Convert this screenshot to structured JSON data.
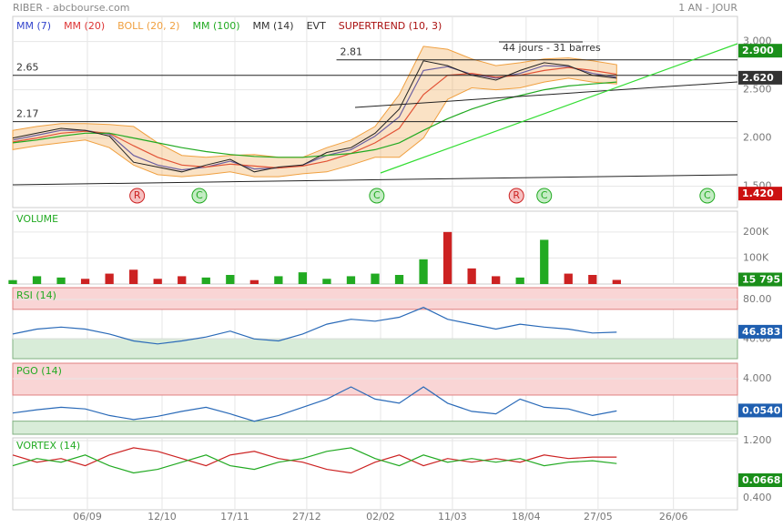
{
  "header": {
    "title": "RIBER - abcbourse.com",
    "period": "1 AN - JOUR"
  },
  "chart_data": [
    {
      "type": "line",
      "x": [
        0,
        2,
        4,
        6,
        8,
        10,
        12,
        14,
        16,
        18,
        20,
        22,
        24,
        26,
        28,
        30,
        32,
        34,
        36,
        38,
        40,
        42,
        44,
        46,
        48,
        50
      ],
      "xlim": [
        0,
        60
      ],
      "xticks": [
        {
          "value": 6.18,
          "label": "06/09"
        },
        {
          "value": 12.36,
          "label": "12/10"
        },
        {
          "value": 18.39,
          "label": "17/11"
        },
        {
          "value": 24.34,
          "label": "27/12"
        },
        {
          "value": 30.45,
          "label": "02/02"
        },
        {
          "value": 36.4,
          "label": "11/03"
        },
        {
          "value": 42.5,
          "label": "18/04"
        },
        {
          "value": 48.46,
          "label": "27/05"
        },
        {
          "value": 54.7,
          "label": "26/06"
        }
      ],
      "ylim": [
        1.28,
        3.26
      ],
      "yticks": [
        {
          "value": 1.5,
          "label": "1.500"
        },
        {
          "value": 2,
          "label": "2.000"
        },
        {
          "value": 2.5,
          "label": "2.500"
        },
        {
          "value": 3,
          "label": "3.000"
        }
      ],
      "close": {
        "color": "#222",
        "values": [
          2.0,
          2.05,
          2.1,
          2.08,
          2.02,
          1.75,
          1.7,
          1.65,
          1.72,
          1.78,
          1.65,
          1.7,
          1.72,
          1.85,
          1.9,
          2.05,
          2.3,
          2.8,
          2.75,
          2.65,
          2.6,
          2.7,
          2.78,
          2.75,
          2.65,
          2.62
        ]
      },
      "series": [
        {
          "name": "MM (7)",
          "color": "#3344cc",
          "values": [
            1.98,
            2.03,
            2.08,
            2.08,
            2.04,
            1.82,
            1.72,
            1.67,
            1.7,
            1.76,
            1.68,
            1.69,
            1.72,
            1.82,
            1.88,
            2.02,
            2.22,
            2.7,
            2.74,
            2.66,
            2.62,
            2.67,
            2.75,
            2.74,
            2.67,
            2.63
          ]
        },
        {
          "name": "MM (20)",
          "color": "#dd3333",
          "values": [
            1.96,
            2.0,
            2.05,
            2.07,
            2.05,
            1.92,
            1.8,
            1.72,
            1.7,
            1.73,
            1.71,
            1.69,
            1.71,
            1.76,
            1.84,
            1.95,
            2.1,
            2.45,
            2.65,
            2.67,
            2.63,
            2.65,
            2.7,
            2.73,
            2.7,
            2.66
          ]
        },
        {
          "name": "BOLL (20, 2)",
          "color": "#f0a040",
          "band": true,
          "values": [
            2.08,
            2.12,
            2.15,
            2.15,
            2.14,
            2.12,
            1.95,
            1.82,
            1.8,
            1.82,
            1.83,
            1.8,
            1.8,
            1.9,
            1.98,
            2.12,
            2.45,
            2.95,
            2.92,
            2.82,
            2.75,
            2.78,
            2.82,
            2.83,
            2.8,
            2.76
          ],
          "lower": [
            1.88,
            1.92,
            1.95,
            1.98,
            1.9,
            1.72,
            1.62,
            1.6,
            1.62,
            1.65,
            1.6,
            1.6,
            1.63,
            1.65,
            1.72,
            1.8,
            1.8,
            2.0,
            2.4,
            2.52,
            2.5,
            2.52,
            2.58,
            2.62,
            2.58,
            2.56
          ]
        },
        {
          "name": "MM (100)",
          "color": "#22aa22",
          "values": [
            1.95,
            1.98,
            2.02,
            2.05,
            2.05,
            2.0,
            1.95,
            1.9,
            1.86,
            1.83,
            1.81,
            1.8,
            1.8,
            1.82,
            1.84,
            1.88,
            1.95,
            2.08,
            2.2,
            2.3,
            2.38,
            2.44,
            2.5,
            2.54,
            2.56,
            2.58
          ]
        }
      ],
      "legend_extra": [
        {
          "name": "MM (14)",
          "color": "#333"
        },
        {
          "name": "EVT",
          "color": "#333"
        },
        {
          "name": "SUPERTREND (10, 3)",
          "color": "#aa1111"
        }
      ],
      "levels": [
        {
          "value": 2.81,
          "from": 26.8
        },
        {
          "value": 2.65,
          "from": 0
        },
        {
          "value": 2.17,
          "from": 0
        }
      ],
      "price_labels": [
        {
          "value": 2.9,
          "label": "2.900",
          "color": "#1a8f1a"
        },
        {
          "value": 2.62,
          "label": "2.620",
          "color": "#333"
        },
        {
          "value": 1.42,
          "label": "1.420",
          "color": "#cc1111"
        }
      ],
      "events": [
        {
          "label": "R",
          "x": 10.3
        },
        {
          "label": "C",
          "x": 15.45
        },
        {
          "label": "C",
          "x": 30.14
        },
        {
          "label": "R",
          "x": 41.7
        },
        {
          "label": "C",
          "x": 44.0
        },
        {
          "label": "C",
          "x": 57.5
        }
      ],
      "annotation": "44 jours - 31 barres"
    },
    {
      "type": "bar",
      "title": "VOLUME",
      "up_color": "#22aa22",
      "down_color": "#cc2222",
      "values": [
        15000,
        30000,
        25000,
        20000,
        40000,
        55000,
        20000,
        30000,
        25000,
        35000,
        15000,
        30000,
        45000,
        20000,
        30000,
        40000,
        35000,
        95000,
        200000,
        60000,
        30000,
        25000,
        170000,
        40000,
        35000,
        15795
      ],
      "ylim": [
        0,
        280000
      ],
      "yticks": [
        {
          "value": 100000,
          "label": "100K"
        },
        {
          "value": 200000,
          "label": "200K"
        }
      ],
      "last_label": {
        "value": 15795,
        "label": "15 795",
        "color": "#1a8f1a"
      }
    },
    {
      "type": "line",
      "title": "RSI (14)",
      "ylim": [
        20,
        92
      ],
      "yticks": [
        {
          "value": 40,
          "label": "40.00"
        },
        {
          "value": 80,
          "label": "80.00"
        }
      ],
      "zones": [
        70,
        40
      ],
      "series": [
        {
          "color": "#2a6ab8",
          "values": [
            45,
            50,
            52,
            50,
            45,
            38,
            35,
            38,
            42,
            48,
            40,
            38,
            45,
            55,
            60,
            58,
            62,
            72,
            60,
            55,
            50,
            55,
            52,
            50,
            46,
            46.883
          ]
        }
      ],
      "last_label": {
        "value": 46.883,
        "label": "46.883",
        "color": "#1f5fb0"
      }
    },
    {
      "type": "line",
      "title": "PGO (14)",
      "ylim": [
        -2.8,
        5.9
      ],
      "yticks": [
        {
          "value": 4,
          "label": "4.000"
        }
      ],
      "zones": [
        2,
        -1.2
      ],
      "series": [
        {
          "color": "#2a6ab8",
          "values": [
            -0.2,
            0.2,
            0.5,
            0.3,
            -0.5,
            -1.0,
            -0.6,
            0.0,
            0.5,
            -0.3,
            -1.2,
            -0.5,
            0.5,
            1.5,
            3.0,
            1.5,
            1.0,
            3.0,
            1.0,
            0.0,
            -0.3,
            1.5,
            0.5,
            0.3,
            -0.5,
            0.054
          ]
        }
      ],
      "last_label": {
        "value": 0.054,
        "label": "0.0540",
        "color": "#1f5fb0"
      }
    },
    {
      "type": "line",
      "title": "VORTEX (14)",
      "ylim": [
        0.2375,
        1.2375
      ],
      "yticks": [
        {
          "value": 0.4,
          "label": "0.400"
        },
        {
          "value": 1.2,
          "label": "1.200"
        }
      ],
      "series": [
        {
          "color": "#cc2222",
          "values": [
            1.0,
            0.9,
            0.95,
            0.85,
            1.0,
            1.1,
            1.05,
            0.95,
            0.85,
            1.0,
            1.05,
            0.95,
            0.9,
            0.8,
            0.75,
            0.9,
            1.0,
            0.85,
            0.95,
            0.9,
            0.95,
            0.9,
            1.0,
            0.95,
            0.97,
            0.97
          ]
        },
        {
          "color": "#22aa22",
          "values": [
            0.85,
            0.95,
            0.9,
            1.0,
            0.85,
            0.75,
            0.8,
            0.9,
            1.0,
            0.85,
            0.8,
            0.9,
            0.95,
            1.05,
            1.1,
            0.95,
            0.85,
            1.0,
            0.9,
            0.95,
            0.9,
            0.95,
            0.85,
            0.9,
            0.92,
            0.88
          ]
        }
      ],
      "last_label": {
        "label": "0.0668",
        "color": "#1a8f1a"
      }
    }
  ]
}
